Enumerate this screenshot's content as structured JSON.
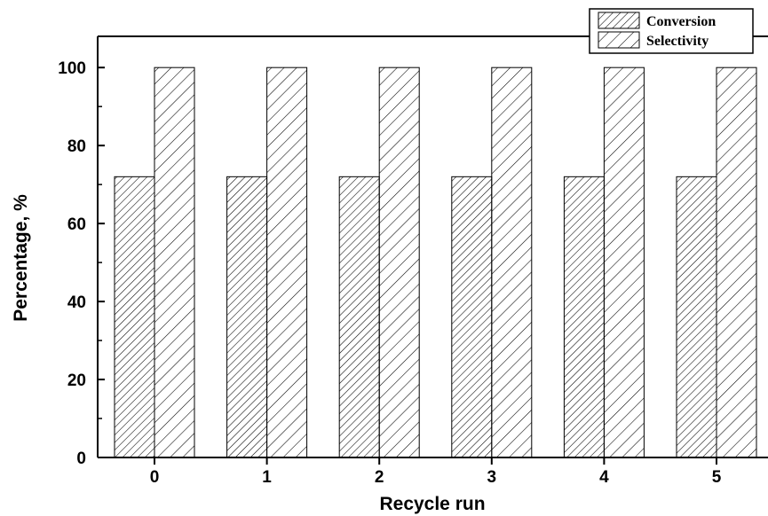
{
  "chart_data": {
    "type": "bar",
    "xlabel": "Recycle run",
    "ylabel": "Percentage, %",
    "categories": [
      "0",
      "1",
      "2",
      "3",
      "4",
      "5"
    ],
    "series": [
      {
        "name": "Conversion",
        "values": [
          72,
          72,
          72,
          72,
          72,
          72
        ],
        "pattern": "hatch-fine"
      },
      {
        "name": "Selectivity",
        "values": [
          100,
          100,
          100,
          100,
          100,
          100
        ],
        "pattern": "hatch-coarse"
      }
    ],
    "ylim": [
      0,
      108
    ],
    "yticks": [
      0,
      20,
      40,
      60,
      80,
      100
    ],
    "legend_position": "top-right",
    "grid": false,
    "colors": {
      "bar_stroke": "#000000",
      "background": "#ffffff"
    }
  }
}
